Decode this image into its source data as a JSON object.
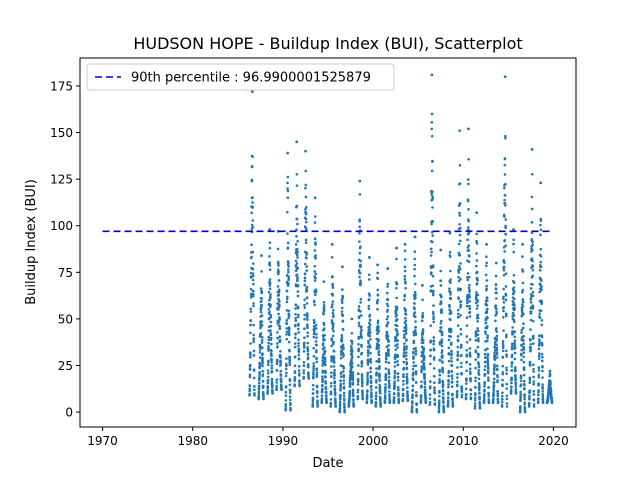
{
  "chart_data": {
    "type": "scatter",
    "title": "HUDSON HOPE - Buildup Index (BUI), Scatterplot",
    "xlabel": "Date",
    "ylabel": "Buildup Index (BUI)",
    "xlim": [
      1967.5,
      2022.5
    ],
    "ylim": [
      -8,
      190
    ],
    "xticks": [
      1970,
      1980,
      1990,
      2000,
      2010,
      2020
    ],
    "yticks": [
      0,
      25,
      50,
      75,
      100,
      125,
      150,
      175
    ],
    "grid": false,
    "legend_position": "top-left",
    "point_color": "#1f77b4",
    "reference_line": {
      "label": "90th percentile : 96.9900001525879",
      "value": 96.9900001525879,
      "x_range": [
        1970,
        2020
      ],
      "color": "#0000cc",
      "style": "dashed"
    },
    "seasons": [
      {
        "year": 1986,
        "min": 9,
        "max": 172
      },
      {
        "year": 1987,
        "min": 7,
        "max": 84
      },
      {
        "year": 1988,
        "min": 10,
        "max": 98
      },
      {
        "year": 1989,
        "min": 12,
        "max": 97
      },
      {
        "year": 1990,
        "min": 1,
        "max": 139
      },
      {
        "year": 1991,
        "min": 14,
        "max": 145
      },
      {
        "year": 1992,
        "min": 18,
        "max": 140
      },
      {
        "year": 1993,
        "min": 3,
        "max": 115
      },
      {
        "year": 1994,
        "min": 5,
        "max": 70
      },
      {
        "year": 1995,
        "min": 3,
        "max": 90
      },
      {
        "year": 1996,
        "min": 0,
        "max": 78
      },
      {
        "year": 1997,
        "min": 3,
        "max": 50
      },
      {
        "year": 1998,
        "min": 7,
        "max": 124
      },
      {
        "year": 1999,
        "min": 5,
        "max": 83
      },
      {
        "year": 2000,
        "min": 3,
        "max": 79
      },
      {
        "year": 2001,
        "min": 5,
        "max": 77
      },
      {
        "year": 2002,
        "min": 5,
        "max": 88
      },
      {
        "year": 2003,
        "min": 6,
        "max": 90
      },
      {
        "year": 2004,
        "min": 0,
        "max": 94
      },
      {
        "year": 2005,
        "min": 5,
        "max": 68
      },
      {
        "year": 2006,
        "min": 4,
        "max": 181
      },
      {
        "year": 2007,
        "min": 0,
        "max": 87
      },
      {
        "year": 2008,
        "min": 3,
        "max": 96
      },
      {
        "year": 2009,
        "min": 8,
        "max": 151
      },
      {
        "year": 2010,
        "min": 7,
        "max": 152
      },
      {
        "year": 2011,
        "min": 2,
        "max": 107
      },
      {
        "year": 2012,
        "min": 5,
        "max": 90
      },
      {
        "year": 2013,
        "min": 5,
        "max": 80
      },
      {
        "year": 2014,
        "min": 3,
        "max": 180
      },
      {
        "year": 2015,
        "min": 10,
        "max": 98
      },
      {
        "year": 2016,
        "min": 0,
        "max": 90
      },
      {
        "year": 2017,
        "min": 3,
        "max": 141
      },
      {
        "year": 2018,
        "min": 5,
        "max": 123
      },
      {
        "year": 2019,
        "min": 5,
        "max": 22
      }
    ]
  }
}
